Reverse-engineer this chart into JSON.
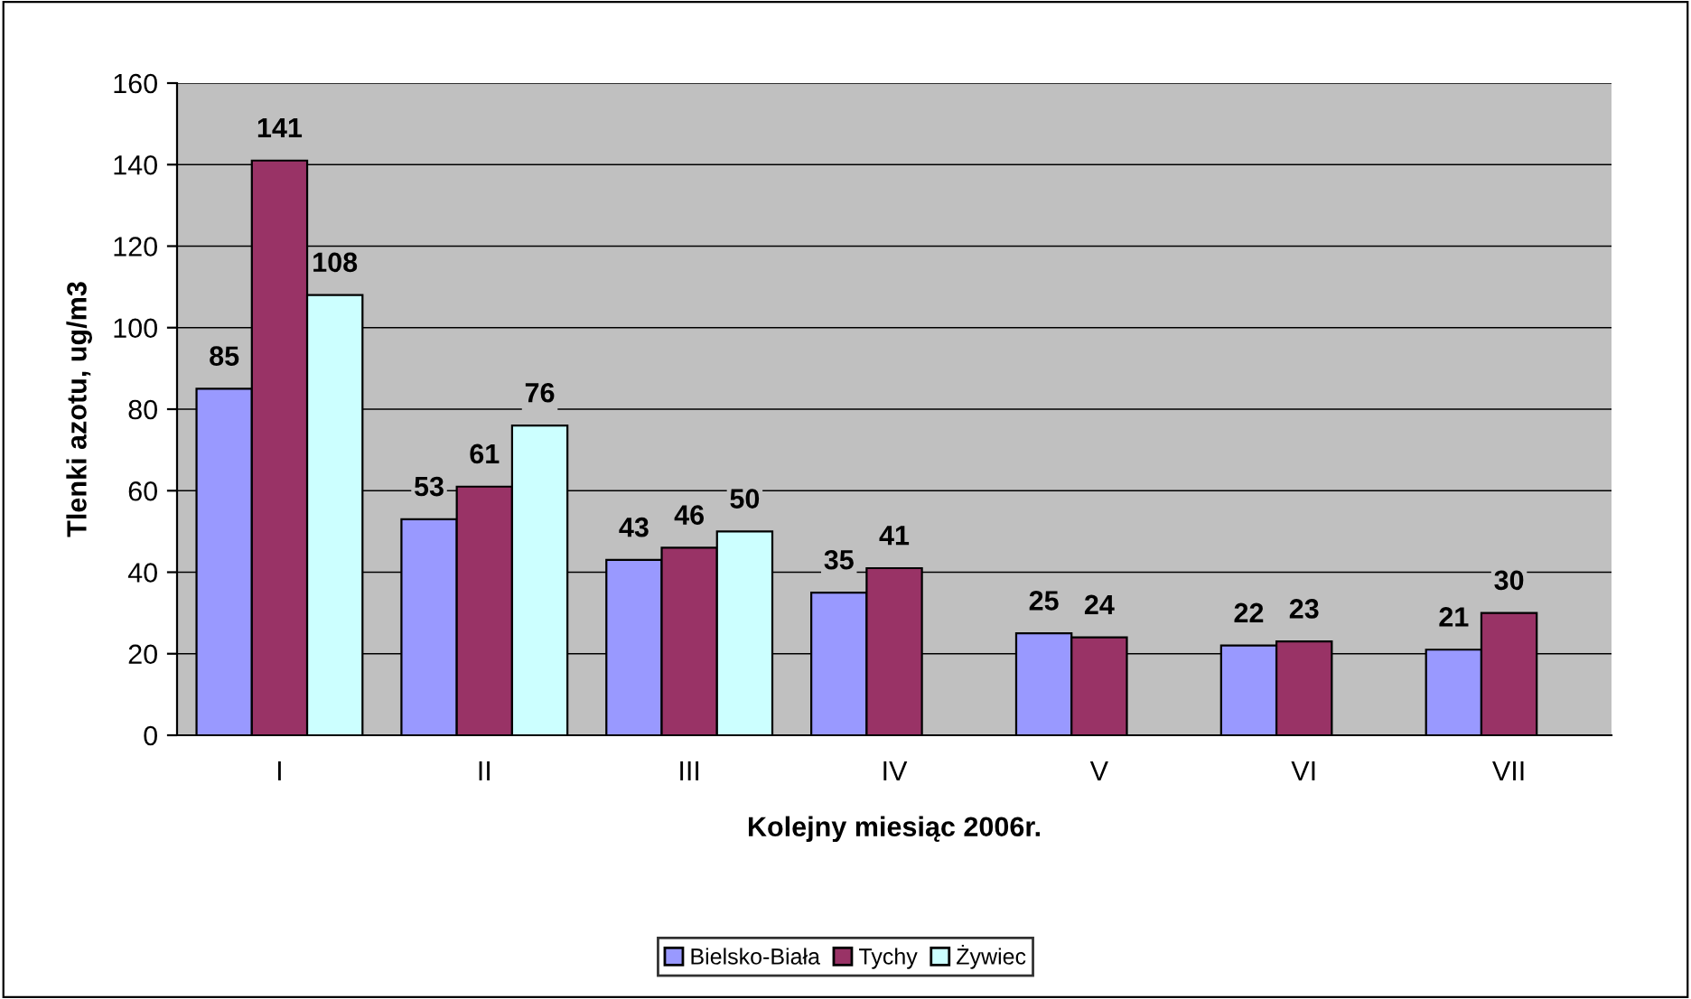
{
  "chart_data": {
    "type": "bar",
    "xlabel": "Kolejny miesiąc 2006r.",
    "ylabel": "Tlenki azotu, ug/m3",
    "categories": [
      "I",
      "II",
      "III",
      "IV",
      "V",
      "VI",
      "VII"
    ],
    "series": [
      {
        "name": "Bielsko-Biała",
        "color": "#9999ff",
        "values": [
          85,
          53,
          43,
          35,
          25,
          22,
          21
        ]
      },
      {
        "name": "Tychy",
        "color": "#993366",
        "values": [
          141,
          61,
          46,
          41,
          24,
          23,
          30
        ]
      },
      {
        "name": "Żywiec",
        "color": "#ccffff",
        "values": [
          108,
          76,
          50,
          null,
          null,
          null,
          null
        ]
      }
    ],
    "ylim": [
      0,
      160
    ],
    "yticks": [
      0,
      20,
      40,
      60,
      80,
      100,
      120,
      140,
      160
    ],
    "grid": "y",
    "legend": "bottom",
    "data_labels": true
  }
}
